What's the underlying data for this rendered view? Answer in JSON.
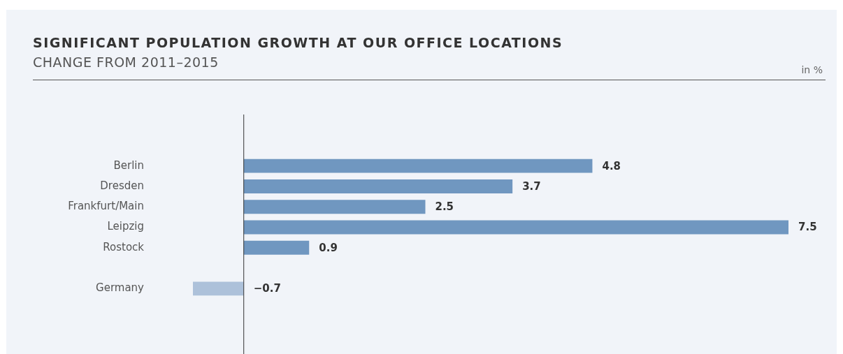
{
  "chart_data": {
    "type": "bar",
    "orientation": "horizontal",
    "title": "SIGNIFICANT POPULATION GROWTH AT OUR OFFICE LOCATIONS",
    "subtitle": "CHANGE FROM 2011–2015",
    "annotations": [
      "in %"
    ],
    "categories": [
      "Berlin",
      "Dresden",
      "Frankfurt/Main",
      "Leipzig",
      "Rostock",
      null,
      "Germany"
    ],
    "values": [
      4.8,
      3.7,
      2.5,
      7.5,
      0.9,
      null,
      -0.7
    ],
    "colors": [
      "#7097c0",
      "#7097c0",
      "#7097c0",
      "#7097c0",
      "#7097c0",
      "#7097c0",
      "#adc1da"
    ],
    "value_labels": [
      "4.8",
      "3.7",
      "2.5",
      "7.5",
      "0.9",
      null,
      "−0.7"
    ],
    "grid": false,
    "legend": false
  }
}
